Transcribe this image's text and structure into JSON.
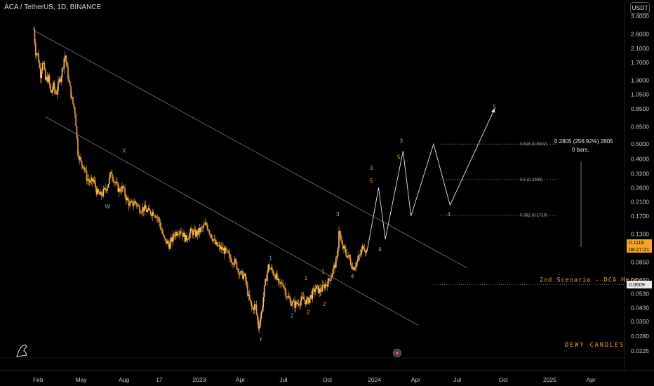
{
  "header": {
    "title": "ACA / TetherUS, 1D, BINANCE",
    "currency_button": "USDT"
  },
  "price_tag": {
    "price": "0.1118",
    "countdown": "08:27:21"
  },
  "dca_tag": {
    "price": "0.0609"
  },
  "colors": {
    "candle": "#f5a623",
    "wave_orange": "#f5a623",
    "wave_blue": "#5bb3e6",
    "background": "#000000"
  },
  "chart_data": {
    "type": "candlestick",
    "y_scale": "log",
    "y_ticks": [
      3.4,
      2.6,
      2.1,
      1.7,
      1.3,
      1.05,
      0.85,
      0.65,
      0.5,
      0.4,
      0.32,
      0.26,
      0.21,
      0.17,
      0.13,
      0.085,
      0.065,
      0.053,
      0.043,
      0.035,
      0.028,
      0.0225
    ],
    "y_tick_labels": [
      "3.4000",
      "2.6000",
      "2.1000",
      "1.7000",
      "1.3000",
      "1.0500",
      "0.8500",
      "0.6500",
      "0.5000",
      "0.4000",
      "0.3200",
      "0.2600",
      "0.2100",
      "0.1700",
      "0.1300",
      "0.0850",
      "0.0650",
      "0.0530",
      "0.0430",
      "0.0350",
      "0.0280",
      "0.0225"
    ],
    "x_ticks": [
      "Feb",
      "May",
      "Aug",
      "17",
      "2023",
      "Apr",
      "Jul",
      "Oct",
      "2024",
      "Apr",
      "Jul",
      "Oct",
      "2025",
      "Apr"
    ],
    "x_tick_pos": [
      0.059,
      0.124,
      0.19,
      0.247,
      0.303,
      0.369,
      0.436,
      0.502,
      0.571,
      0.637,
      0.702,
      0.771,
      0.839,
      0.905
    ],
    "price_series": [
      [
        0.0,
        2.8
      ],
      [
        0.003,
        2.0
      ],
      [
        0.007,
        1.9
      ],
      [
        0.011,
        1.4
      ],
      [
        0.015,
        1.8
      ],
      [
        0.019,
        1.3
      ],
      [
        0.024,
        1.35
      ],
      [
        0.028,
        1.05
      ],
      [
        0.032,
        1.2
      ],
      [
        0.036,
        1.05
      ],
      [
        0.041,
        1.25
      ],
      [
        0.046,
        1.45
      ],
      [
        0.051,
        1.95
      ],
      [
        0.056,
        1.4
      ],
      [
        0.062,
        1.0
      ],
      [
        0.068,
        0.8
      ],
      [
        0.072,
        0.45
      ],
      [
        0.077,
        0.38
      ],
      [
        0.082,
        0.36
      ],
      [
        0.087,
        0.3
      ],
      [
        0.093,
        0.28
      ],
      [
        0.098,
        0.29
      ],
      [
        0.104,
        0.24
      ],
      [
        0.11,
        0.23
      ],
      [
        0.116,
        0.25
      ],
      [
        0.121,
        0.27
      ],
      [
        0.127,
        0.33
      ],
      [
        0.133,
        0.28
      ],
      [
        0.14,
        0.25
      ],
      [
        0.146,
        0.26
      ],
      [
        0.152,
        0.22
      ],
      [
        0.158,
        0.2
      ],
      [
        0.166,
        0.21
      ],
      [
        0.173,
        0.19
      ],
      [
        0.181,
        0.19
      ],
      [
        0.189,
        0.18
      ],
      [
        0.197,
        0.18
      ],
      [
        0.205,
        0.16
      ],
      [
        0.213,
        0.12
      ],
      [
        0.222,
        0.11
      ],
      [
        0.231,
        0.13
      ],
      [
        0.24,
        0.14
      ],
      [
        0.249,
        0.12
      ],
      [
        0.258,
        0.135
      ],
      [
        0.266,
        0.13
      ],
      [
        0.275,
        0.14
      ],
      [
        0.283,
        0.15
      ],
      [
        0.29,
        0.13
      ],
      [
        0.298,
        0.11
      ],
      [
        0.306,
        0.105
      ],
      [
        0.314,
        0.1
      ],
      [
        0.322,
        0.09
      ],
      [
        0.33,
        0.085
      ],
      [
        0.338,
        0.072
      ],
      [
        0.346,
        0.068
      ],
      [
        0.352,
        0.05
      ],
      [
        0.358,
        0.042
      ],
      [
        0.363,
        0.045
      ],
      [
        0.368,
        0.032
      ],
      [
        0.373,
        0.04
      ],
      [
        0.378,
        0.058
      ],
      [
        0.384,
        0.08
      ],
      [
        0.39,
        0.075
      ],
      [
        0.396,
        0.07
      ],
      [
        0.402,
        0.06
      ],
      [
        0.408,
        0.063
      ],
      [
        0.414,
        0.052
      ],
      [
        0.421,
        0.047
      ],
      [
        0.428,
        0.045
      ],
      [
        0.435,
        0.047
      ],
      [
        0.441,
        0.049
      ],
      [
        0.448,
        0.047
      ],
      [
        0.455,
        0.052
      ],
      [
        0.462,
        0.058
      ],
      [
        0.469,
        0.055
      ],
      [
        0.476,
        0.06
      ],
      [
        0.483,
        0.064
      ],
      [
        0.49,
        0.075
      ],
      [
        0.497,
        0.09
      ],
      [
        0.5,
        0.14
      ],
      [
        0.504,
        0.11
      ],
      [
        0.51,
        0.1
      ],
      [
        0.517,
        0.09
      ],
      [
        0.523,
        0.078
      ],
      [
        0.529,
        0.085
      ],
      [
        0.535,
        0.095
      ],
      [
        0.54,
        0.11
      ],
      [
        0.545,
        0.1
      ]
    ],
    "channel_upper": [
      [
        0.0,
        2.75
      ],
      [
        0.71,
        0.078
      ]
    ],
    "channel_lower": [
      [
        0.02,
        0.75
      ],
      [
        0.63,
        0.033
      ]
    ],
    "projection_path": [
      [
        0.546,
        0.1
      ],
      [
        0.565,
        0.26
      ],
      [
        0.576,
        0.12
      ],
      [
        0.605,
        0.45
      ],
      [
        0.618,
        0.17
      ],
      [
        0.655,
        0.5
      ],
      [
        0.682,
        0.2
      ],
      [
        0.755,
        0.85
      ]
    ],
    "fib_levels": [
      {
        "label": "0.618 (0.5002)",
        "value": 0.5
      },
      {
        "label": "0.5 (0.2933)",
        "value": 0.2933
      },
      {
        "label": "0.382 (0.1719)",
        "value": 0.1719
      }
    ],
    "dca_level": {
      "label": "2nd Scenario - DCA Here",
      "value": 0.0609
    },
    "measure_note": {
      "line1": "0.2805 (256.92%) 2805",
      "line2": "0 bars,"
    },
    "wave_labels": [
      {
        "text": "X",
        "color": "blue",
        "t": 0.148,
        "v": 0.44
      },
      {
        "text": "W",
        "color": "blue",
        "t": 0.121,
        "v": 0.19
      },
      {
        "text": "1",
        "color": "blue",
        "t": 0.388,
        "v": 0.088
      },
      {
        "text": "Y",
        "color": "blue",
        "t": 0.372,
        "v": 0.026
      },
      {
        "text": "2",
        "color": "blue",
        "t": 0.423,
        "v": 0.037
      },
      {
        "text": "1",
        "color": "orange",
        "t": 0.446,
        "v": 0.065
      },
      {
        "text": "2",
        "color": "orange",
        "t": 0.45,
        "v": 0.039
      },
      {
        "text": "1",
        "color": "orange",
        "t": 0.474,
        "v": 0.072
      },
      {
        "text": "2",
        "color": "orange",
        "t": 0.476,
        "v": 0.044
      },
      {
        "text": "3",
        "color": "orange",
        "t": 0.498,
        "v": 0.17
      },
      {
        "text": "4",
        "color": "orange",
        "t": 0.522,
        "v": 0.067
      },
      {
        "text": "4",
        "color": "orange",
        "t": 0.567,
        "v": 0.1
      },
      {
        "text": "3",
        "color": "orange",
        "t": 0.553,
        "v": 0.34
      },
      {
        "text": "5",
        "color": "orange",
        "t": 0.553,
        "v": 0.28
      },
      {
        "text": "5",
        "color": "orange",
        "t": 0.598,
        "v": 0.4
      },
      {
        "text": "3",
        "color": "blue",
        "t": 0.602,
        "v": 0.51
      },
      {
        "text": "4",
        "color": "blue",
        "t": 0.68,
        "v": 0.17
      },
      {
        "text": "5",
        "color": "blue",
        "t": 0.755,
        "v": 0.85
      }
    ]
  },
  "watermark": {
    "brand_text": "DEWY CANDLES"
  }
}
